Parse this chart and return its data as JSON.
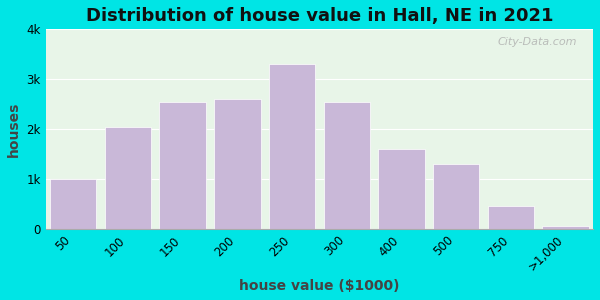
{
  "title": "Distribution of house value in Hall, NE in 2021",
  "xlabel": "house value ($1000)",
  "ylabel": "houses",
  "categories": [
    "50",
    "100",
    "150",
    "200",
    "250",
    "300",
    "400",
    "500",
    "750",
    ">1,000"
  ],
  "heights": [
    1000,
    2050,
    2550,
    2600,
    3300,
    2550,
    1600,
    1300,
    450,
    50
  ],
  "bar_color": "#c9b8d8",
  "background_outer": "#00e5e5",
  "background_inner": "#e8f5e8",
  "ylim": [
    0,
    4000
  ],
  "yticks": [
    0,
    1000,
    2000,
    3000,
    4000
  ],
  "ytick_labels": [
    "0",
    "1k",
    "2k",
    "3k",
    "4k"
  ],
  "title_fontsize": 13,
  "axis_label_fontsize": 10,
  "tick_fontsize": 8.5,
  "watermark": "City-Data.com"
}
